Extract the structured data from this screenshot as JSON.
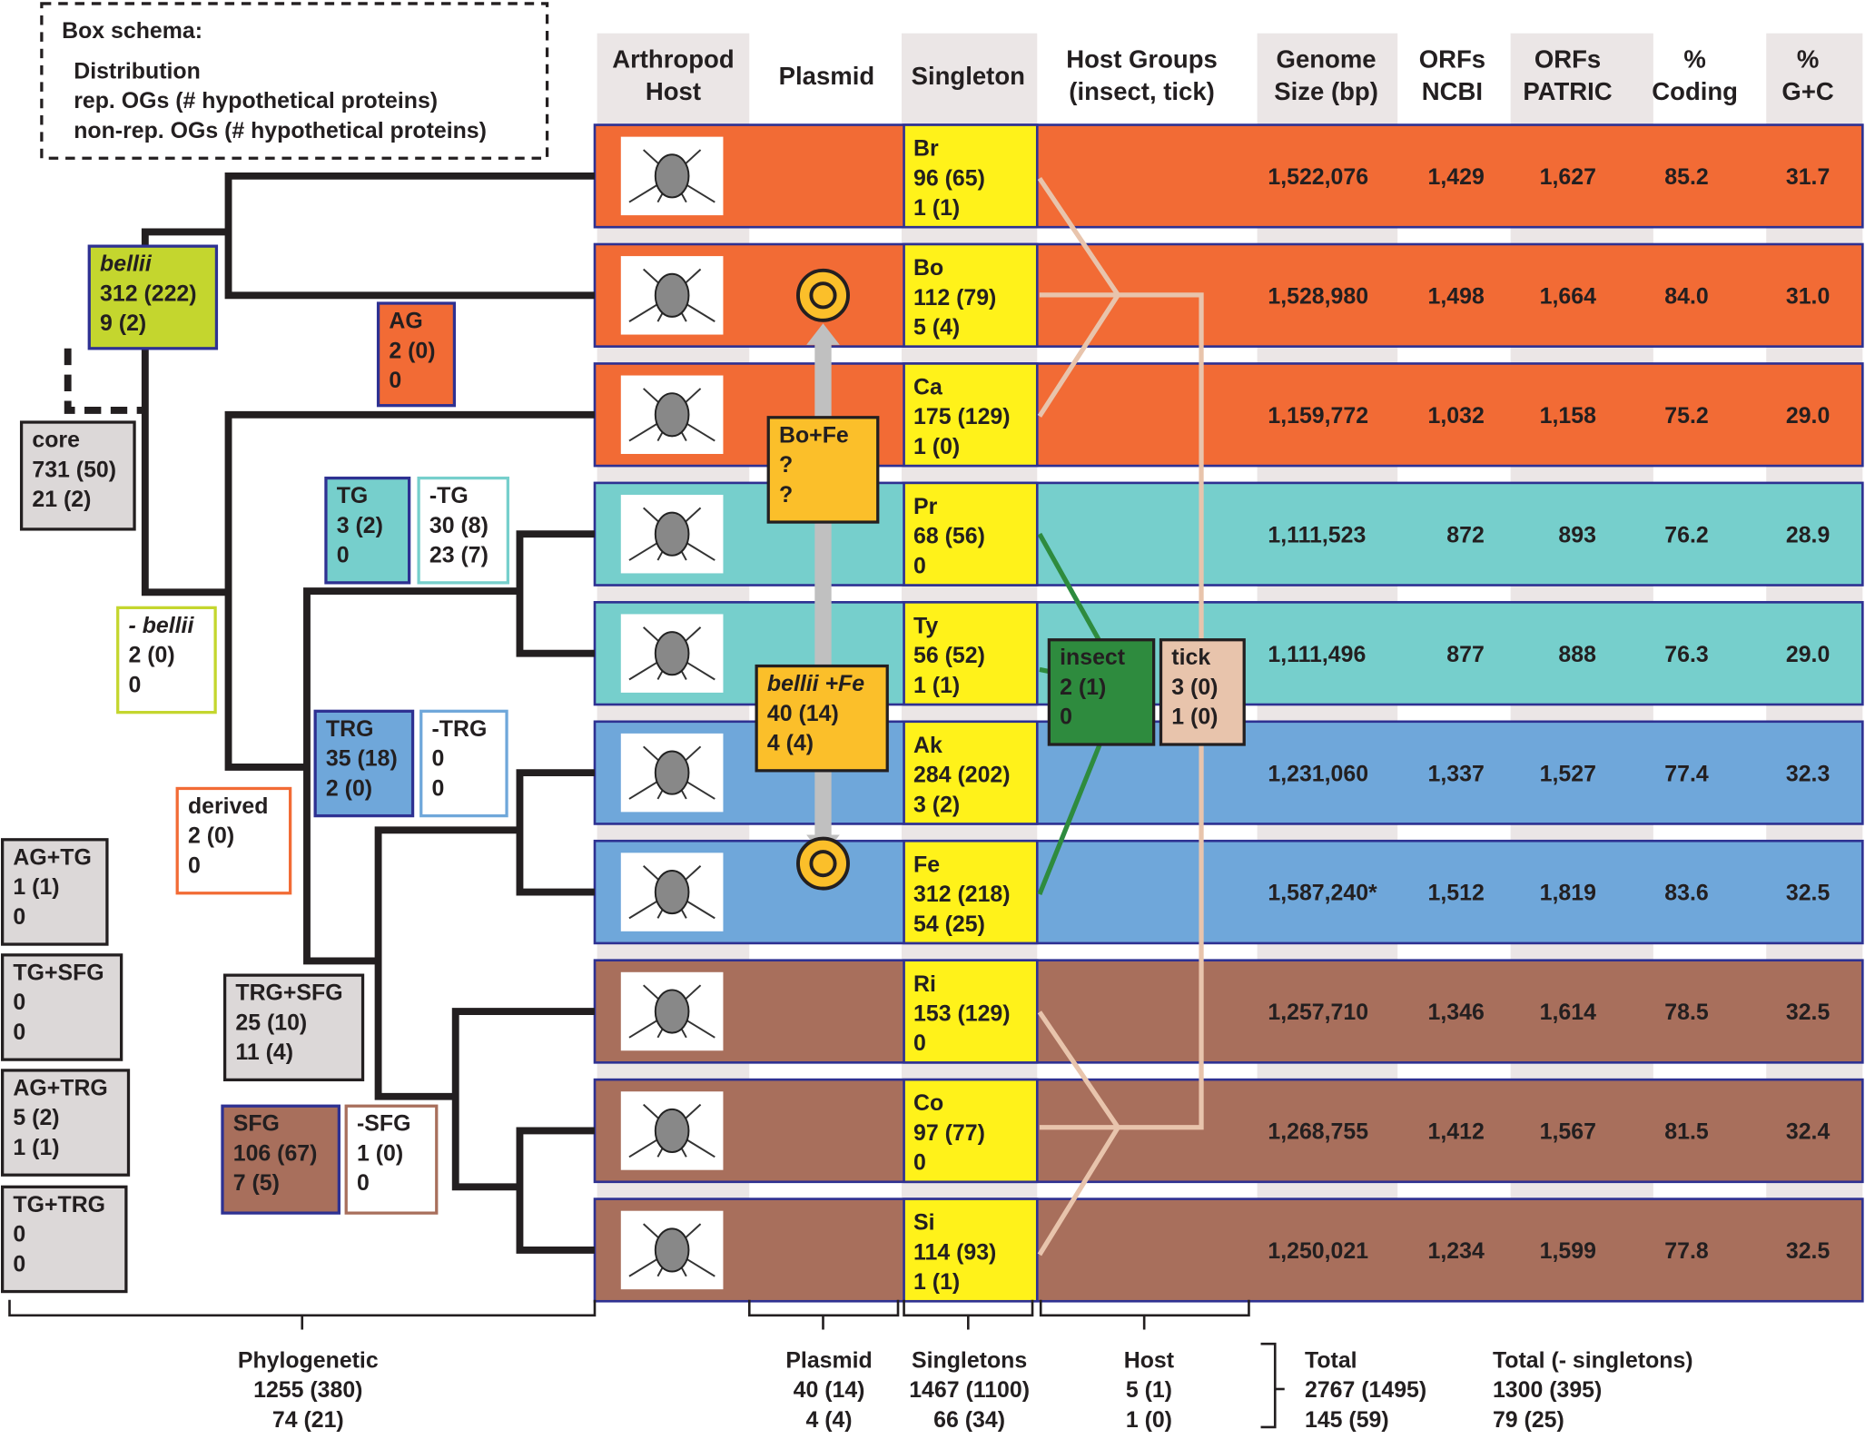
{
  "schema": {
    "title": "Box schema:",
    "lines": [
      "Distribution",
      "rep. OGs (# hypothetical proteins)",
      "non-rep. OGs (# hypothetical proteins)"
    ]
  },
  "headers": [
    [
      "Arthropod",
      "Host"
    ],
    [
      "Plasmid"
    ],
    [
      "Singleton"
    ],
    [
      "Host Groups",
      "(insect, tick)"
    ],
    [
      "Genome",
      "Size (bp)"
    ],
    [
      "ORFs",
      "NCBI"
    ],
    [
      "ORFs",
      "PATRIC"
    ],
    [
      "%",
      "Coding"
    ],
    [
      "%",
      "G+C"
    ]
  ],
  "rows": [
    {
      "singleton": [
        "Br",
        "96 (65)",
        "1 (1)"
      ],
      "genome_size": "1,522,076",
      "orfs_ncbi": "1,429",
      "orfs_patric": "1,627",
      "coding": "85.2",
      "gc": "31.7"
    },
    {
      "singleton": [
        "Bo",
        "112 (79)",
        "5 (4)"
      ],
      "genome_size": "1,528,980",
      "orfs_ncbi": "1,498",
      "orfs_patric": "1,664",
      "coding": "84.0",
      "gc": "31.0"
    },
    {
      "singleton": [
        "Ca",
        "175 (129)",
        "1 (0)"
      ],
      "genome_size": "1,159,772",
      "orfs_ncbi": "1,032",
      "orfs_patric": "1,158",
      "coding": "75.2",
      "gc": "29.0"
    },
    {
      "singleton": [
        "Pr",
        "68 (56)",
        "0"
      ],
      "genome_size": "1,111,523",
      "orfs_ncbi": "872",
      "orfs_patric": "893",
      "coding": "76.2",
      "gc": "28.9"
    },
    {
      "singleton": [
        "Ty",
        "56 (52)",
        "1 (1)"
      ],
      "genome_size": "1,111,496",
      "orfs_ncbi": "877",
      "orfs_patric": "888",
      "coding": "76.3",
      "gc": "29.0"
    },
    {
      "singleton": [
        "Ak",
        "284 (202)",
        "3 (2)"
      ],
      "genome_size": "1,231,060",
      "orfs_ncbi": "1,337",
      "orfs_patric": "1,527",
      "coding": "77.4",
      "gc": "32.3"
    },
    {
      "singleton": [
        "Fe",
        "312 (218)",
        "54 (25)"
      ],
      "genome_size": "1,587,240*",
      "orfs_ncbi": "1,512",
      "orfs_patric": "1,819",
      "coding": "83.6",
      "gc": "32.5"
    },
    {
      "singleton": [
        "Ri",
        "153 (129)",
        "0"
      ],
      "genome_size": "1,257,710",
      "orfs_ncbi": "1,346",
      "orfs_patric": "1,614",
      "coding": "78.5",
      "gc": "32.5"
    },
    {
      "singleton": [
        "Co",
        "97 (77)",
        "0"
      ],
      "genome_size": "1,268,755",
      "orfs_ncbi": "1,412",
      "orfs_patric": "1,567",
      "coding": "81.5",
      "gc": "32.4"
    },
    {
      "singleton": [
        "Si",
        "114 (93)",
        "1 (1)"
      ],
      "genome_size": "1,250,021",
      "orfs_ncbi": "1,234",
      "orfs_patric": "1,599",
      "coding": "77.8",
      "gc": "32.5"
    }
  ],
  "tree_boxes": [
    [
      "bellii",
      "312 (222)",
      "9 (2)"
    ],
    [
      "AG",
      "2 (0)",
      "0"
    ],
    [
      "core",
      "731 (50)",
      "21 (2)"
    ],
    [
      "TG",
      "3 (2)",
      "0"
    ],
    [
      "-TG",
      "30 (8)",
      "23 (7)"
    ],
    [
      "- bellii",
      "2 (0)",
      "0"
    ],
    [
      "TRG",
      "35 (18)",
      "2 (0)"
    ],
    [
      "-TRG",
      "0",
      "0"
    ],
    [
      "derived",
      "2 (0)",
      "0"
    ],
    [
      "AG+TG",
      "1 (1)",
      "0"
    ],
    [
      "TG+SFG",
      "0",
      "0"
    ],
    [
      "TRG+SFG",
      "25 (10)",
      "11 (4)"
    ],
    [
      "AG+TRG",
      "5 (2)",
      "1 (1)"
    ],
    [
      "SFG",
      "106 (67)",
      "7 (5)"
    ],
    [
      "-SFG",
      "1 (0)",
      "0"
    ],
    [
      "TG+TRG",
      "0",
      "0"
    ]
  ],
  "plasmid_boxes": [
    [
      "Bo+Fe",
      "?",
      "?"
    ],
    [
      "bellii +Fe",
      "40 (14)",
      "4 (4)"
    ]
  ],
  "host_boxes": [
    [
      "insect",
      "2 (1)",
      "0"
    ],
    [
      "tick",
      "3 (0)",
      "1 (0)"
    ]
  ],
  "totals": [
    [
      "Phylogenetic",
      "1255 (380)",
      "74   (21)"
    ],
    [
      "Plasmid",
      "40 (14)",
      "4   (4)"
    ],
    [
      "Singletons",
      "1467 (1100)",
      "66    (34)"
    ],
    [
      "Host",
      "5 (1)",
      "1 (0)"
    ],
    [
      "Total",
      "2767 (1495)",
      "145     (59)"
    ],
    [
      "Total (- singletons)",
      "1300 (395)",
      "79   (25)"
    ]
  ]
}
